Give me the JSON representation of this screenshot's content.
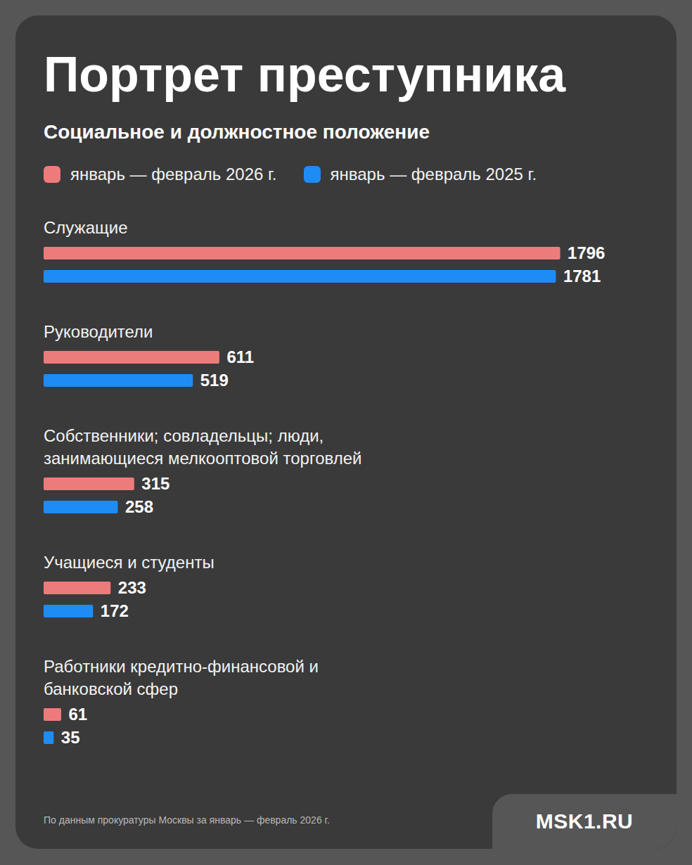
{
  "chart_data": {
    "type": "bar",
    "orientation": "horizontal",
    "title": "Портрет преступника",
    "subtitle": "Социальное и должностное положение",
    "categories": [
      "Служащие",
      "Руководители",
      "Собственники; совладельцы; люди, занимающиеся мелкооптовой торговлей",
      "Учащиеся и студенты",
      "Работники кредитно-финансовой и банковской сфер"
    ],
    "series": [
      {
        "name": "январь — февраль 2026 г.",
        "color": "#ee7b7b",
        "values": [
          1796,
          611,
          315,
          233,
          61
        ]
      },
      {
        "name": "январь — февраль 2025 г.",
        "color": "#1e8cf5",
        "values": [
          1781,
          519,
          258,
          172,
          35
        ]
      }
    ],
    "xlim": [
      0,
      2000
    ],
    "xticks": [],
    "tick_labels": false,
    "grid": false,
    "data_labels": true,
    "legend": "top-left",
    "caption": "По данным прокуратуры Москвы за январь — февраль 2026 г.",
    "annotations": [
      "MSK1.RU"
    ]
  }
}
